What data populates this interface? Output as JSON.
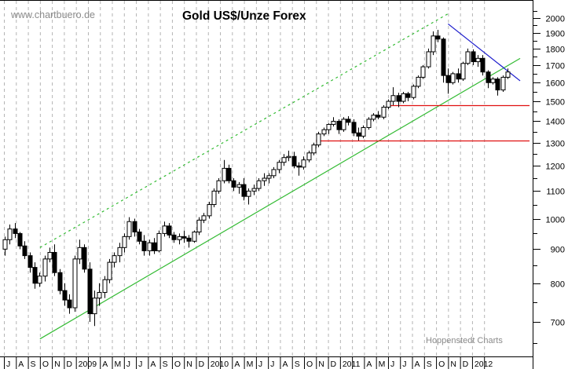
{
  "chart_data": {
    "type": "candlestick",
    "title": "Gold US$/Unze Forex",
    "watermark_top": "www.chartbuero.de",
    "watermark_bottom": "Hoppenstedt Charts",
    "xlabel": "",
    "ylabel": "",
    "y_scale": "log",
    "ylim": [
      640,
      2100
    ],
    "y_ticks": [
      700,
      800,
      900,
      1000,
      1100,
      1200,
      1300,
      1400,
      1500,
      1600,
      1700,
      1800,
      1900,
      2000
    ],
    "grid": {
      "vertical": true,
      "horizontal": false,
      "style": "dashed",
      "color": "#b4b4b4"
    },
    "x_labels": [
      "J",
      "A",
      "S",
      "O",
      "N",
      "D",
      "2009",
      "",
      "A",
      "M",
      "J",
      "J",
      "A",
      "S",
      "O",
      "N",
      "D",
      "2010",
      "",
      "A",
      "M",
      "J",
      "J",
      "A",
      "S",
      "O",
      "N",
      "D",
      "2011",
      "",
      "A",
      "M",
      "J",
      "J",
      "A",
      "S",
      "O",
      "N",
      "D",
      "2012",
      ""
    ],
    "x_range": "Jul 2008 - Feb 2012 (weekly candles)",
    "colors": {
      "candle": "#000000",
      "channel_support": "#33bb33",
      "channel_upper_dashed": "#33bb33",
      "downtrend": "#1a1acc",
      "horizontal_support": "#e01010",
      "axis": "#000000"
    },
    "trend_lines": [
      {
        "name": "support-channel-lower",
        "style": "solid",
        "color": "#33bb33",
        "from": {
          "date": "2008-10",
          "price": 660
        },
        "to": {
          "date": "2012-02",
          "price": 1740
        }
      },
      {
        "name": "channel-upper",
        "style": "dashed",
        "color": "#33bb33",
        "from": {
          "date": "2008-10",
          "price": 905
        },
        "to": {
          "date": "2011-08",
          "price": 2030
        }
      },
      {
        "name": "downtrend-resistance",
        "style": "solid",
        "color": "#1a1acc",
        "from": {
          "date": "2011-08",
          "price": 1960
        },
        "to": {
          "date": "2012-02",
          "price": 1610
        }
      },
      {
        "name": "horizontal-support-1480",
        "style": "solid",
        "color": "#e01010",
        "price": 1480,
        "from": {
          "date": "2011-03"
        },
        "to": {
          "date": "2012-02"
        }
      },
      {
        "name": "horizontal-support-1310",
        "style": "solid",
        "color": "#e01010",
        "price": 1310,
        "from": {
          "date": "2010-09"
        },
        "to": {
          "date": "2012-02"
        }
      }
    ],
    "series": [
      {
        "name": "Gold USD/oz",
        "ohlc": [
          [
            900,
            940,
            880,
            930
          ],
          [
            930,
            980,
            915,
            965
          ],
          [
            965,
            985,
            935,
            950
          ],
          [
            950,
            955,
            900,
            910
          ],
          [
            910,
            925,
            870,
            880
          ],
          [
            880,
            890,
            830,
            845
          ],
          [
            845,
            860,
            785,
            800
          ],
          [
            800,
            830,
            790,
            820
          ],
          [
            820,
            880,
            805,
            870
          ],
          [
            870,
            905,
            860,
            890
          ],
          [
            890,
            915,
            820,
            830
          ],
          [
            830,
            840,
            770,
            780
          ],
          [
            780,
            800,
            740,
            755
          ],
          [
            755,
            770,
            720,
            735
          ],
          [
            735,
            880,
            725,
            870
          ],
          [
            870,
            930,
            855,
            905
          ],
          [
            905,
            915,
            830,
            840
          ],
          [
            840,
            860,
            700,
            720
          ],
          [
            720,
            780,
            690,
            760
          ],
          [
            760,
            800,
            740,
            775
          ],
          [
            775,
            820,
            760,
            810
          ],
          [
            810,
            870,
            800,
            860
          ],
          [
            860,
            890,
            845,
            880
          ],
          [
            880,
            920,
            860,
            905
          ],
          [
            905,
            950,
            890,
            940
          ],
          [
            940,
            1005,
            930,
            990
          ],
          [
            990,
            1000,
            940,
            955
          ],
          [
            955,
            965,
            915,
            925
          ],
          [
            925,
            945,
            880,
            895
          ],
          [
            895,
            930,
            880,
            920
          ],
          [
            920,
            935,
            885,
            895
          ],
          [
            895,
            960,
            890,
            950
          ],
          [
            950,
            990,
            940,
            975
          ],
          [
            975,
            985,
            935,
            945
          ],
          [
            945,
            955,
            920,
            930
          ],
          [
            930,
            950,
            915,
            940
          ],
          [
            940,
            960,
            920,
            935
          ],
          [
            935,
            945,
            905,
            925
          ],
          [
            925,
            960,
            920,
            955
          ],
          [
            955,
            1005,
            945,
            995
          ],
          [
            995,
            1020,
            985,
            1010
          ],
          [
            1010,
            1060,
            1000,
            1050
          ],
          [
            1050,
            1110,
            1040,
            1100
          ],
          [
            1100,
            1150,
            1090,
            1140
          ],
          [
            1140,
            1225,
            1130,
            1190
          ],
          [
            1190,
            1205,
            1130,
            1140
          ],
          [
            1140,
            1150,
            1100,
            1115
          ],
          [
            1115,
            1135,
            1090,
            1125
          ],
          [
            1125,
            1150,
            1065,
            1080
          ],
          [
            1080,
            1110,
            1050,
            1100
          ],
          [
            1100,
            1125,
            1085,
            1110
          ],
          [
            1110,
            1150,
            1100,
            1140
          ],
          [
            1140,
            1170,
            1120,
            1150
          ],
          [
            1150,
            1170,
            1130,
            1160
          ],
          [
            1160,
            1195,
            1150,
            1185
          ],
          [
            1185,
            1225,
            1170,
            1215
          ],
          [
            1215,
            1250,
            1200,
            1235
          ],
          [
            1235,
            1265,
            1220,
            1240
          ],
          [
            1240,
            1260,
            1190,
            1200
          ],
          [
            1200,
            1215,
            1160,
            1195
          ],
          [
            1195,
            1240,
            1185,
            1225
          ],
          [
            1225,
            1265,
            1215,
            1255
          ],
          [
            1255,
            1300,
            1245,
            1290
          ],
          [
            1290,
            1350,
            1280,
            1340
          ],
          [
            1340,
            1370,
            1330,
            1360
          ],
          [
            1360,
            1390,
            1340,
            1385
          ],
          [
            1385,
            1420,
            1375,
            1400
          ],
          [
            1400,
            1410,
            1340,
            1360
          ],
          [
            1360,
            1420,
            1350,
            1410
          ],
          [
            1410,
            1425,
            1380,
            1395
          ],
          [
            1395,
            1410,
            1330,
            1345
          ],
          [
            1345,
            1370,
            1310,
            1330
          ],
          [
            1330,
            1380,
            1320,
            1370
          ],
          [
            1370,
            1420,
            1360,
            1410
          ],
          [
            1410,
            1440,
            1400,
            1430
          ],
          [
            1430,
            1450,
            1410,
            1420
          ],
          [
            1420,
            1480,
            1410,
            1470
          ],
          [
            1470,
            1510,
            1460,
            1500
          ],
          [
            1500,
            1575,
            1480,
            1530
          ],
          [
            1530,
            1545,
            1470,
            1500
          ],
          [
            1500,
            1550,
            1490,
            1540
          ],
          [
            1540,
            1550,
            1500,
            1520
          ],
          [
            1520,
            1590,
            1510,
            1580
          ],
          [
            1580,
            1640,
            1570,
            1630
          ],
          [
            1630,
            1700,
            1620,
            1690
          ],
          [
            1690,
            1800,
            1680,
            1780
          ],
          [
            1780,
            1910,
            1760,
            1880
          ],
          [
            1880,
            1920,
            1840,
            1860
          ],
          [
            1860,
            1870,
            1600,
            1640
          ],
          [
            1640,
            1680,
            1540,
            1600
          ],
          [
            1600,
            1660,
            1590,
            1650
          ],
          [
            1650,
            1680,
            1600,
            1620
          ],
          [
            1620,
            1720,
            1610,
            1710
          ],
          [
            1710,
            1800,
            1700,
            1780
          ],
          [
            1780,
            1795,
            1700,
            1720
          ],
          [
            1720,
            1760,
            1690,
            1740
          ],
          [
            1740,
            1760,
            1640,
            1660
          ],
          [
            1660,
            1670,
            1570,
            1600
          ],
          [
            1600,
            1630,
            1590,
            1620
          ],
          [
            1620,
            1630,
            1530,
            1560
          ],
          [
            1560,
            1640,
            1550,
            1630
          ],
          [
            1630,
            1680,
            1620,
            1660
          ]
        ]
      }
    ]
  }
}
